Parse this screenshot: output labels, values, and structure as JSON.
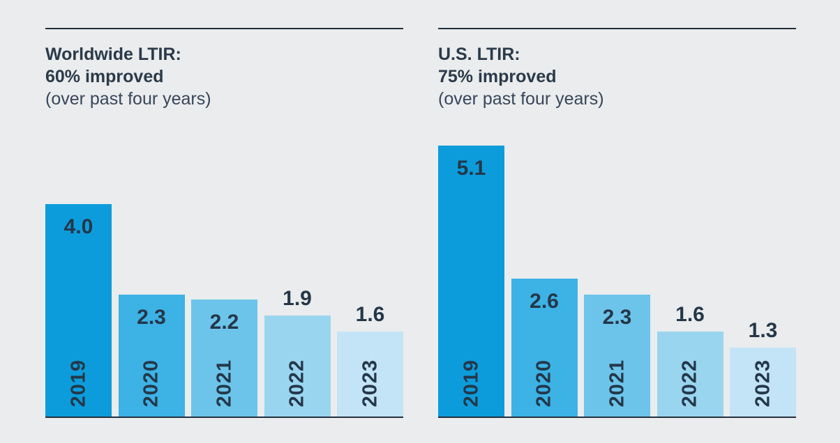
{
  "page": {
    "background_color": "#eaeced",
    "rule_color": "#232f3e",
    "label_color": "#243749",
    "title_color": "#2b3a4a"
  },
  "chart_data": [
    {
      "type": "bar",
      "title_line1": "Worldwide LTIR:",
      "title_line2": "60% improved",
      "title_line3": "(over past four years)",
      "categories": [
        "2019",
        "2020",
        "2021",
        "2022",
        "2023"
      ],
      "values": [
        4.0,
        2.3,
        2.2,
        1.9,
        1.6
      ],
      "bar_colors": [
        "#0d9cdb",
        "#3db2e5",
        "#6cc4ea",
        "#9ad5f0",
        "#c3e4f6"
      ],
      "ylim": [
        0,
        5.5
      ],
      "xlabel": "",
      "ylabel": "",
      "grid": false,
      "legend": "none",
      "value_labels_shown": true,
      "year_labels_rotated": true
    },
    {
      "type": "bar",
      "title_line1": "U.S. LTIR:",
      "title_line2": "75% improved",
      "title_line3": "(over past four years)",
      "categories": [
        "2019",
        "2020",
        "2021",
        "2022",
        "2023"
      ],
      "values": [
        5.1,
        2.6,
        2.3,
        1.6,
        1.3
      ],
      "bar_colors": [
        "#0d9cdb",
        "#3db2e5",
        "#6cc4ea",
        "#9ad5f0",
        "#c3e4f6"
      ],
      "ylim": [
        0,
        5.5
      ],
      "xlabel": "",
      "ylabel": "",
      "grid": false,
      "legend": "none",
      "value_labels_shown": true,
      "year_labels_rotated": true
    }
  ]
}
